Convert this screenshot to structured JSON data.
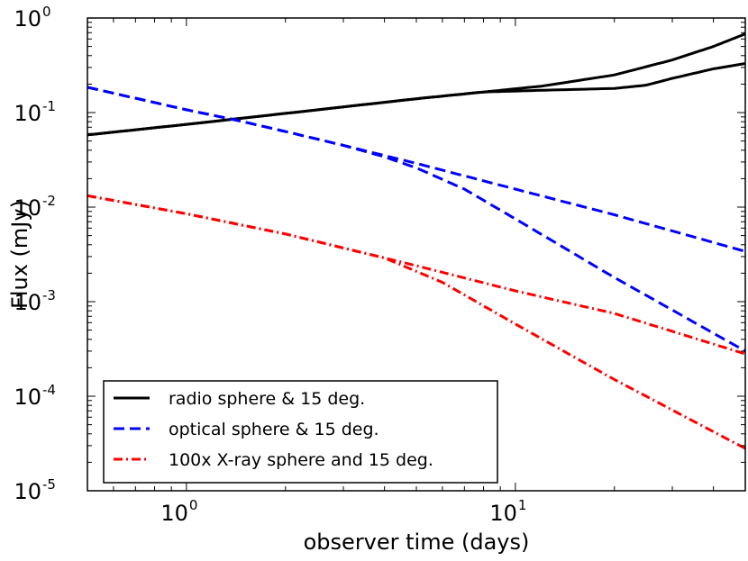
{
  "chart_data": {
    "type": "line",
    "title": "",
    "xlabel": "observer time (days)",
    "ylabel": "Flux (mJy)",
    "xscale": "log",
    "yscale": "log",
    "xlim": [
      0.5,
      50
    ],
    "ylim": [
      1e-05,
      1
    ],
    "xticks": [
      {
        "value": 1,
        "base": "10",
        "exp": "0"
      },
      {
        "value": 10,
        "base": "10",
        "exp": "1"
      }
    ],
    "yticks": [
      {
        "value": 1,
        "base": "10",
        "exp": "0"
      },
      {
        "value": 0.1,
        "base": "10",
        "exp": "-1"
      },
      {
        "value": 0.01,
        "base": "10",
        "exp": "-2"
      },
      {
        "value": 0.001,
        "base": "10",
        "exp": "-3"
      },
      {
        "value": 0.0001,
        "base": "10",
        "exp": "-4"
      },
      {
        "value": 1e-05,
        "base": "10",
        "exp": "-5"
      }
    ],
    "legend": {
      "placement": "lower-left",
      "entries": [
        {
          "label": "radio sphere & 15 deg.",
          "color": "#000000",
          "dash": "solid"
        },
        {
          "label": "optical sphere & 15 deg.",
          "color": "#0000ff",
          "dash": "dashed"
        },
        {
          "label": "100x X-ray sphere and 15 deg.",
          "color": "#ff0000",
          "dash": "dashdot"
        }
      ]
    },
    "series": [
      {
        "name": "radio sphere",
        "group": 0,
        "color": "#000000",
        "dash": "solid",
        "points": [
          [
            0.5,
            0.058
          ],
          [
            1,
            0.075
          ],
          [
            2,
            0.098
          ],
          [
            5,
            0.14
          ],
          [
            8,
            0.165
          ],
          [
            12,
            0.19
          ],
          [
            20,
            0.25
          ],
          [
            30,
            0.36
          ],
          [
            40,
            0.5
          ],
          [
            50,
            0.68
          ]
        ]
      },
      {
        "name": "radio 15 deg.",
        "group": 0,
        "color": "#000000",
        "dash": "solid",
        "points": [
          [
            0.5,
            0.058
          ],
          [
            1,
            0.075
          ],
          [
            2,
            0.098
          ],
          [
            5,
            0.14
          ],
          [
            8,
            0.165
          ],
          [
            12,
            0.172
          ],
          [
            20,
            0.18
          ],
          [
            25,
            0.195
          ],
          [
            30,
            0.23
          ],
          [
            40,
            0.29
          ],
          [
            50,
            0.33
          ]
        ]
      },
      {
        "name": "optical sphere",
        "group": 1,
        "color": "#0000ff",
        "dash": "dashed",
        "points": [
          [
            0.5,
            0.185
          ],
          [
            1,
            0.107
          ],
          [
            1.4,
            0.084
          ],
          [
            2,
            0.063
          ],
          [
            3,
            0.045
          ],
          [
            5,
            0.029
          ],
          [
            10,
            0.0155
          ],
          [
            20,
            0.0083
          ],
          [
            50,
            0.0034
          ]
        ]
      },
      {
        "name": "optical 15 deg.",
        "group": 1,
        "color": "#0000ff",
        "dash": "dashed",
        "points": [
          [
            0.5,
            0.185
          ],
          [
            1,
            0.107
          ],
          [
            1.4,
            0.084
          ],
          [
            2,
            0.063
          ],
          [
            3,
            0.045
          ],
          [
            4,
            0.034
          ],
          [
            5,
            0.026
          ],
          [
            7,
            0.0155
          ],
          [
            10,
            0.0075
          ],
          [
            20,
            0.0018
          ],
          [
            50,
            0.0003
          ]
        ]
      },
      {
        "name": "X-ray sphere",
        "group": 2,
        "color": "#ff0000",
        "dash": "dashdot",
        "points": [
          [
            0.5,
            0.0132
          ],
          [
            1,
            0.0085
          ],
          [
            2,
            0.0052
          ],
          [
            5,
            0.0024
          ],
          [
            10,
            0.0013
          ],
          [
            20,
            0.00075
          ],
          [
            50,
            0.00028
          ]
        ]
      },
      {
        "name": "X-ray 15 deg.",
        "group": 2,
        "color": "#ff0000",
        "dash": "dashdot",
        "points": [
          [
            0.5,
            0.0132
          ],
          [
            1,
            0.0085
          ],
          [
            2,
            0.0052
          ],
          [
            4,
            0.0029
          ],
          [
            6,
            0.0016
          ],
          [
            10,
            0.00058
          ],
          [
            20,
            0.00015
          ],
          [
            50,
            2.8e-05
          ]
        ]
      }
    ]
  }
}
